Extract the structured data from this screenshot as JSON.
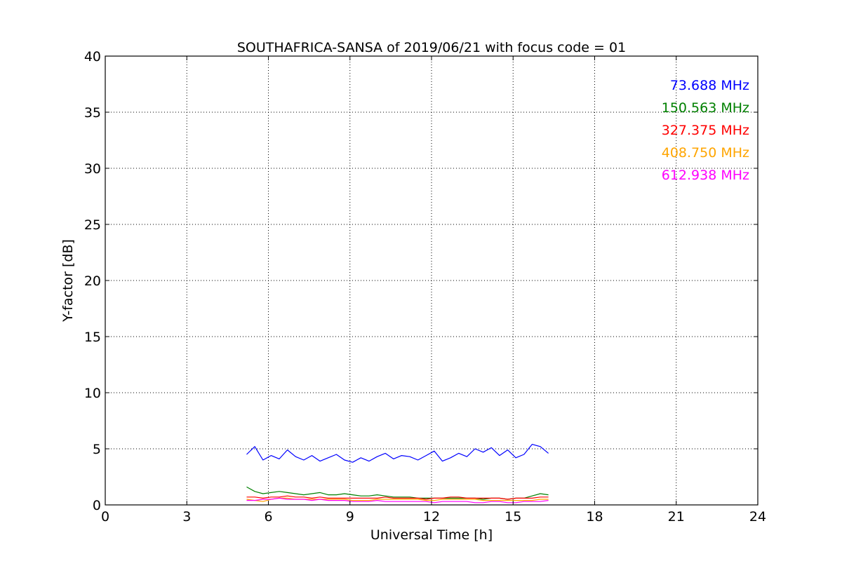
{
  "chart_data": {
    "type": "line",
    "title": "SOUTHAFRICA-SANSA of 2019/06/21 with focus code = 01",
    "xlabel": "Universal Time [h]",
    "ylabel": "Y-factor [dB]",
    "xlim": [
      0,
      24
    ],
    "ylim": [
      0,
      40
    ],
    "xticks": [
      0,
      3,
      6,
      9,
      12,
      15,
      18,
      21,
      24
    ],
    "yticks": [
      0,
      5,
      10,
      15,
      20,
      25,
      30,
      35,
      40
    ],
    "xtick_labels": [
      "0",
      "3",
      "6",
      "9",
      "12",
      "15",
      "18",
      "21",
      "24"
    ],
    "ytick_labels": [
      "0",
      "5",
      "10",
      "15",
      "20",
      "25",
      "30",
      "35",
      "40"
    ],
    "grid": true,
    "legend_placement": "top-right",
    "series": [
      {
        "name": "73.688 MHz",
        "color": "#0000ff",
        "x": [
          5.2,
          5.5,
          5.8,
          6.1,
          6.4,
          6.7,
          7.0,
          7.3,
          7.6,
          7.9,
          8.2,
          8.5,
          8.8,
          9.1,
          9.4,
          9.7,
          10.0,
          10.3,
          10.6,
          10.9,
          11.2,
          11.5,
          11.8,
          12.1,
          12.4,
          12.7,
          13.0,
          13.3,
          13.6,
          13.9,
          14.2,
          14.5,
          14.8,
          15.1,
          15.4,
          15.7,
          16.0,
          16.3
        ],
        "y": [
          4.5,
          5.2,
          4.0,
          4.4,
          4.1,
          4.9,
          4.3,
          4.0,
          4.4,
          3.9,
          4.2,
          4.5,
          4.0,
          3.8,
          4.2,
          3.9,
          4.3,
          4.6,
          4.1,
          4.4,
          4.3,
          4.0,
          4.4,
          4.8,
          3.9,
          4.2,
          4.6,
          4.3,
          5.0,
          4.7,
          5.1,
          4.4,
          4.9,
          4.2,
          4.5,
          5.4,
          5.2,
          4.6
        ]
      },
      {
        "name": "150.563 MHz",
        "color": "#008000",
        "x": [
          5.2,
          5.5,
          5.8,
          6.1,
          6.4,
          6.7,
          7.0,
          7.3,
          7.6,
          7.9,
          8.2,
          8.5,
          8.8,
          9.1,
          9.4,
          9.7,
          10.0,
          10.3,
          10.6,
          10.9,
          11.2,
          11.5,
          11.8,
          12.1,
          12.4,
          12.7,
          13.0,
          13.3,
          13.6,
          13.9,
          14.2,
          14.5,
          14.8,
          15.1,
          15.4,
          15.7,
          16.0,
          16.3
        ],
        "y": [
          1.6,
          1.2,
          1.0,
          1.1,
          1.2,
          1.1,
          1.0,
          0.9,
          1.0,
          1.1,
          0.9,
          0.9,
          1.0,
          0.9,
          0.8,
          0.8,
          0.9,
          0.8,
          0.7,
          0.7,
          0.7,
          0.6,
          0.6,
          0.6,
          0.6,
          0.6,
          0.6,
          0.6,
          0.6,
          0.5,
          0.6,
          0.6,
          0.5,
          0.6,
          0.6,
          0.8,
          1.0,
          0.9
        ]
      },
      {
        "name": "327.375 MHz",
        "color": "#ff0000",
        "x": [
          5.2,
          5.5,
          5.8,
          6.1,
          6.4,
          6.7,
          7.0,
          7.3,
          7.6,
          7.9,
          8.2,
          8.5,
          8.8,
          9.1,
          9.4,
          9.7,
          10.0,
          10.3,
          10.6,
          10.9,
          11.2,
          11.5,
          11.8,
          12.1,
          12.4,
          12.7,
          13.0,
          13.3,
          13.6,
          13.9,
          14.2,
          14.5,
          14.8,
          15.1,
          15.4,
          15.7,
          16.0,
          16.3
        ],
        "y": [
          0.7,
          0.7,
          0.6,
          0.7,
          0.7,
          0.8,
          0.7,
          0.7,
          0.6,
          0.7,
          0.6,
          0.6,
          0.6,
          0.6,
          0.6,
          0.6,
          0.6,
          0.7,
          0.6,
          0.6,
          0.6,
          0.6,
          0.5,
          0.6,
          0.6,
          0.7,
          0.7,
          0.6,
          0.6,
          0.6,
          0.6,
          0.6,
          0.5,
          0.6,
          0.6,
          0.6,
          0.7,
          0.7
        ]
      },
      {
        "name": "408.750 MHz",
        "color": "#ffa500",
        "x": [
          5.2,
          5.5,
          5.8,
          6.1,
          6.4,
          6.7,
          7.0,
          7.3,
          7.6,
          7.9,
          8.2,
          8.5,
          8.8,
          9.1,
          9.4,
          9.7,
          10.0,
          10.3,
          10.6,
          10.9,
          11.2,
          11.5,
          11.8,
          12.1,
          12.4,
          12.7,
          13.0,
          13.3,
          13.6,
          13.9,
          14.2,
          14.5,
          14.8,
          15.1,
          15.4,
          15.7,
          16.0,
          16.3
        ],
        "y": [
          0.5,
          0.4,
          0.3,
          0.5,
          0.6,
          0.6,
          0.5,
          0.5,
          0.5,
          0.5,
          0.5,
          0.5,
          0.5,
          0.4,
          0.4,
          0.4,
          0.5,
          0.5,
          0.5,
          0.5,
          0.5,
          0.5,
          0.4,
          0.4,
          0.5,
          0.5,
          0.5,
          0.5,
          0.5,
          0.4,
          0.4,
          0.4,
          0.4,
          0.4,
          0.4,
          0.4,
          0.5,
          0.5
        ]
      },
      {
        "name": "612.938 MHz",
        "color": "#ff00ff",
        "x": [
          5.2,
          5.5,
          5.8,
          6.1,
          6.4,
          6.7,
          7.0,
          7.3,
          7.6,
          7.9,
          8.2,
          8.5,
          8.8,
          9.1,
          9.4,
          9.7,
          10.0,
          10.3,
          10.6,
          10.9,
          11.2,
          11.5,
          11.8,
          12.1,
          12.4,
          12.7,
          13.0,
          13.3,
          13.6,
          13.9,
          14.2,
          14.5,
          14.8,
          15.1,
          15.4,
          15.7,
          16.0,
          16.3
        ],
        "y": [
          0.4,
          0.4,
          0.5,
          0.5,
          0.6,
          0.5,
          0.5,
          0.5,
          0.4,
          0.5,
          0.4,
          0.4,
          0.4,
          0.3,
          0.3,
          0.3,
          0.4,
          0.3,
          0.3,
          0.3,
          0.3,
          0.3,
          0.3,
          0.2,
          0.3,
          0.3,
          0.3,
          0.3,
          0.2,
          0.2,
          0.3,
          0.3,
          0.2,
          0.2,
          0.3,
          0.3,
          0.3,
          0.4
        ]
      }
    ]
  }
}
